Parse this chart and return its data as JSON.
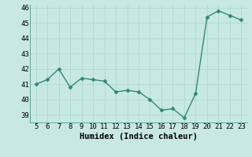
{
  "x": [
    5,
    6,
    7,
    8,
    9,
    10,
    11,
    12,
    13,
    14,
    15,
    16,
    17,
    18,
    19,
    20,
    21,
    22,
    23
  ],
  "y": [
    41.0,
    41.3,
    42.0,
    40.8,
    41.4,
    41.3,
    41.2,
    40.5,
    40.6,
    40.5,
    40.0,
    39.3,
    39.4,
    38.8,
    40.4,
    45.4,
    45.8,
    45.5,
    45.2
  ],
  "line_color": "#2e8b74",
  "bg_color": "#c8e8e4",
  "grid_color": "#b0d8d4",
  "xlabel": "Humidex (Indice chaleur)",
  "ylim": [
    38.5,
    46.2
  ],
  "xlim": [
    4.5,
    23.5
  ],
  "yticks": [
    39,
    40,
    41,
    42,
    43,
    44,
    45,
    46
  ],
  "xticks": [
    5,
    6,
    7,
    8,
    9,
    10,
    11,
    12,
    13,
    14,
    15,
    16,
    17,
    18,
    19,
    20,
    21,
    22,
    23
  ],
  "tick_fontsize": 6.5,
  "xlabel_fontsize": 7.5
}
